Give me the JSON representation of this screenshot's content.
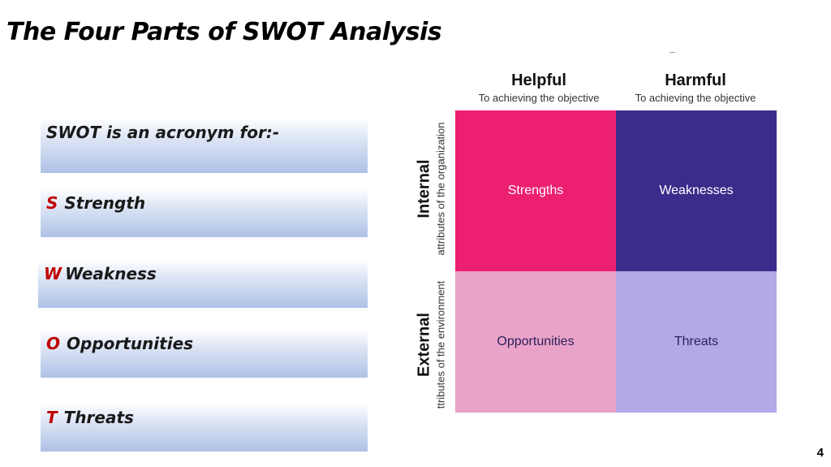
{
  "slide": {
    "title": "The Four Parts of SWOT Analysis",
    "page_number": "4"
  },
  "list": {
    "intro": "SWOT is an acronym for:-",
    "items": [
      {
        "letter": "S",
        "word": "Strength"
      },
      {
        "letter": "W",
        "word": "Weakness"
      },
      {
        "letter": "O",
        "word": "Opportunities"
      },
      {
        "letter": "T",
        "word": "Threats"
      }
    ]
  },
  "matrix": {
    "columns": [
      {
        "heading": "Helpful",
        "sub": "To achieving the objective"
      },
      {
        "heading": "Harmful",
        "sub": "To achieving the objective"
      }
    ],
    "rows": [
      {
        "heading": "Internal",
        "sub": "attributes of the organization"
      },
      {
        "heading": "External",
        "sub": "ttributes of the environment"
      }
    ],
    "cells": {
      "strengths": "Strengths",
      "weaknesses": "Weaknesses",
      "opportunities": "Opportunities",
      "threats": "Threats"
    },
    "colors": {
      "strengths": "#ed1f70",
      "weaknesses": "#3d2b8b",
      "opportunities": "#eaa3c8",
      "threats": "#b2a9e8",
      "letter_accent": "#c00000"
    }
  }
}
